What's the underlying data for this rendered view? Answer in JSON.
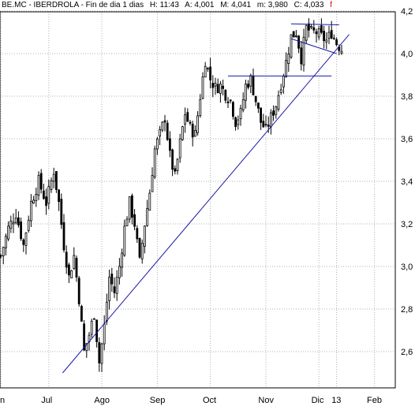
{
  "header": {
    "symbol": "BE.MC - IBERDROLA - Fin de dia 1 dias",
    "high": "H: 11:43",
    "open": "A: 4,001",
    "max": "M: 4,041",
    "min": "m: 3,980",
    "close": "C: 4,033",
    "flag": "f"
  },
  "chart_data": {
    "type": "candlestick",
    "title": "",
    "xlabel": "",
    "ylabel": "",
    "ylim": [
      2.47,
      4.22
    ],
    "y_ticks": [
      "2,6",
      "2,8",
      "3,0",
      "3,2",
      "3,4",
      "3,6",
      "3,8",
      "4,0",
      "4,2"
    ],
    "x_ticks": [
      "Jun",
      "Jul",
      "Ago",
      "Sep",
      "Oct",
      "Nov",
      "Dic",
      "13",
      "Feb"
    ],
    "x_ticks_displayed": [
      "n",
      "Jul",
      "Ago",
      "Sep",
      "Oct",
      "Nov",
      "Dic",
      "13",
      "Feb"
    ],
    "close_path": [
      [
        0,
        3.05
      ],
      [
        3,
        3.18
      ],
      [
        6,
        3.25
      ],
      [
        9,
        3.1
      ],
      [
        12,
        3.3
      ],
      [
        15,
        3.4
      ],
      [
        18,
        3.3
      ],
      [
        21,
        3.45
      ],
      [
        23,
        3.3
      ],
      [
        25,
        3.1
      ],
      [
        27,
        2.95
      ],
      [
        29,
        3.05
      ],
      [
        31,
        2.85
      ],
      [
        33,
        2.6
      ],
      [
        35,
        2.68
      ],
      [
        37,
        2.78
      ],
      [
        39,
        2.55
      ],
      [
        41,
        2.72
      ],
      [
        43,
        2.95
      ],
      [
        45,
        2.88
      ],
      [
        47,
        3.0
      ],
      [
        49,
        3.18
      ],
      [
        51,
        3.3
      ],
      [
        53,
        3.2
      ],
      [
        55,
        3.02
      ],
      [
        57,
        3.2
      ],
      [
        59,
        3.35
      ],
      [
        61,
        3.55
      ],
      [
        63,
        3.62
      ],
      [
        65,
        3.7
      ],
      [
        67,
        3.52
      ],
      [
        69,
        3.42
      ],
      [
        71,
        3.58
      ],
      [
        73,
        3.72
      ],
      [
        75,
        3.65
      ],
      [
        77,
        3.62
      ],
      [
        79,
        3.8
      ],
      [
        81,
        3.97
      ],
      [
        83,
        3.88
      ],
      [
        85,
        3.84
      ],
      [
        87,
        3.85
      ],
      [
        89,
        3.81
      ],
      [
        91,
        3.78
      ],
      [
        93,
        3.68
      ],
      [
        95,
        3.72
      ],
      [
        97,
        3.85
      ],
      [
        99,
        3.88
      ],
      [
        101,
        3.78
      ],
      [
        103,
        3.68
      ],
      [
        105,
        3.64
      ],
      [
        107,
        3.7
      ],
      [
        109,
        3.76
      ],
      [
        111,
        3.86
      ],
      [
        113,
        3.96
      ],
      [
        115,
        4.08
      ],
      [
        117,
        4.1
      ],
      [
        119,
        3.98
      ],
      [
        121,
        4.12
      ],
      [
        123,
        4.1
      ],
      [
        125,
        4.1
      ],
      [
        127,
        4.08
      ],
      [
        129,
        4.06
      ],
      [
        131,
        4.1
      ],
      [
        133,
        4.05
      ],
      [
        135,
        4.02
      ]
    ],
    "trend_lines": [
      {
        "name": "support",
        "from": [
          24.5,
          2.5
        ],
        "to": [
          138,
          4.09
        ]
      },
      {
        "name": "resistance",
        "from": [
          90,
          3.895
        ],
        "to": [
          131,
          3.895
        ]
      },
      {
        "name": "channel-top",
        "from": [
          115,
          4.14
        ],
        "to": [
          134,
          4.135
        ]
      },
      {
        "name": "channel-bottom",
        "from": [
          115,
          4.07
        ],
        "to": [
          133,
          4.0
        ]
      }
    ]
  }
}
